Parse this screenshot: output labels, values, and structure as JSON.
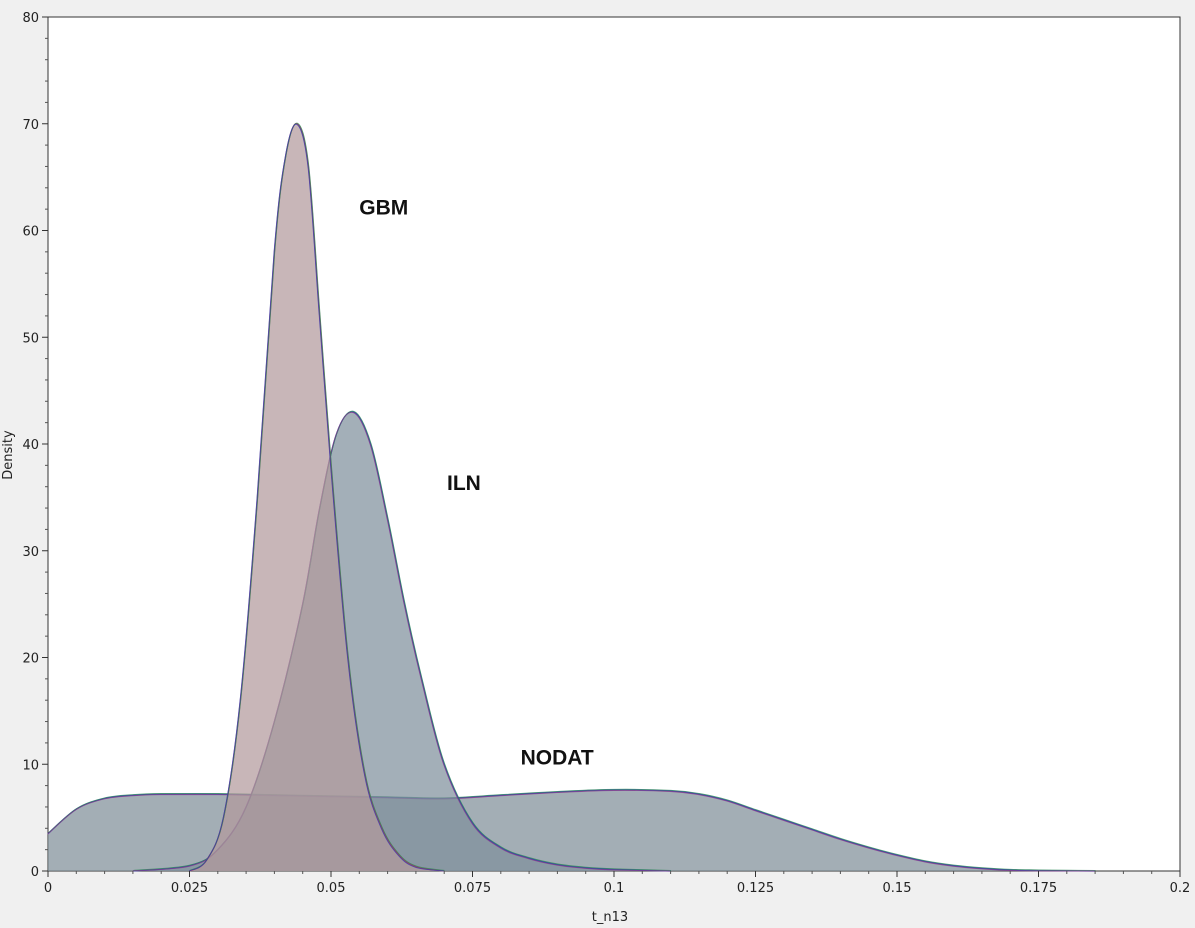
{
  "chart_data": {
    "type": "area",
    "xlabel": "t_n13",
    "ylabel": "Density",
    "xlim": [
      0,
      0.2
    ],
    "ylim": [
      0,
      80
    ],
    "x_ticks": [
      0,
      0.025,
      0.05,
      0.075,
      0.1,
      0.125,
      0.15,
      0.175,
      0.2
    ],
    "x_tick_labels": [
      "0",
      "0.025",
      "0.05",
      "0.075",
      "0.1",
      "0.125",
      "0.15",
      "0.175",
      "0.2"
    ],
    "y_ticks": [
      0,
      10,
      20,
      30,
      40,
      50,
      60,
      70,
      80
    ],
    "y_tick_labels": [
      "0",
      "10",
      "20",
      "30",
      "40",
      "50",
      "60",
      "70",
      "80"
    ],
    "grid": false,
    "series": [
      {
        "name": "NODAT",
        "color": "#7f8f99",
        "line_color": "#3040b0",
        "x": [
          0,
          0.005,
          0.01,
          0.015,
          0.02,
          0.03,
          0.04,
          0.05,
          0.06,
          0.07,
          0.08,
          0.09,
          0.1,
          0.11,
          0.115,
          0.12,
          0.125,
          0.13,
          0.135,
          0.14,
          0.145,
          0.15,
          0.155,
          0.16,
          0.165,
          0.17,
          0.175,
          0.18,
          0.185
        ],
        "values": [
          3.5,
          5.8,
          6.8,
          7.1,
          7.2,
          7.2,
          7.1,
          7.0,
          6.9,
          6.8,
          7.1,
          7.4,
          7.6,
          7.5,
          7.2,
          6.6,
          5.7,
          4.8,
          3.9,
          3.0,
          2.2,
          1.5,
          0.9,
          0.5,
          0.25,
          0.1,
          0.05,
          0.02,
          0.0
        ]
      },
      {
        "name": "ILN",
        "color": "#7f909c",
        "line_color": "#3040b0",
        "x": [
          0.015,
          0.025,
          0.03,
          0.035,
          0.04,
          0.045,
          0.048,
          0.051,
          0.054,
          0.057,
          0.06,
          0.063,
          0.066,
          0.07,
          0.075,
          0.08,
          0.085,
          0.09,
          0.095,
          0.1,
          0.11
        ],
        "values": [
          0,
          0.5,
          2.0,
          6.0,
          14.0,
          25.0,
          34.0,
          41.0,
          43.0,
          40.0,
          33.0,
          25.0,
          18.0,
          10.0,
          4.5,
          2.2,
          1.2,
          0.6,
          0.3,
          0.15,
          0.0
        ]
      },
      {
        "name": "GBM",
        "color": "#b39a9c",
        "line_color": "#b03060",
        "x": [
          0.025,
          0.028,
          0.031,
          0.034,
          0.037,
          0.04,
          0.042,
          0.044,
          0.046,
          0.048,
          0.05,
          0.053,
          0.056,
          0.059,
          0.062,
          0.065,
          0.07
        ],
        "values": [
          0,
          1.0,
          5.0,
          16.0,
          35.0,
          58.0,
          67.0,
          70.0,
          66.0,
          52.0,
          38.0,
          20.0,
          9.0,
          4.0,
          1.5,
          0.4,
          0.0
        ]
      }
    ],
    "annotations": [
      {
        "text": "GBM",
        "x": 0.055,
        "y": 61.5
      },
      {
        "text": "ILN",
        "x": 0.0705,
        "y": 35.7
      },
      {
        "text": "NODAT",
        "x": 0.0835,
        "y": 10.0
      }
    ]
  }
}
